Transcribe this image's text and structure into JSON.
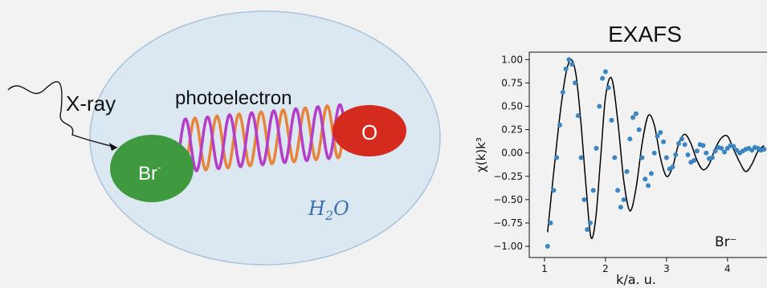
{
  "diagram": {
    "xray_label": "X-ray",
    "photoelectron_label": "photoelectron",
    "bromide_label": "Br",
    "bromide_charge": "-",
    "oxygen_label": "O",
    "water_label_main": "H",
    "water_label_sub": "2",
    "water_label_end": "O",
    "colors": {
      "water_fill": "#dbe7f1",
      "water_stroke": "#a9c4dc",
      "bromide": "#3f9a3f",
      "oxygen": "#d42b1e",
      "wave_orange": "#e8843a",
      "wave_purple": "#b53dc7",
      "water_text": "#3a6fb3"
    }
  },
  "chart_data": {
    "type": "scatter",
    "title": "EXAFS",
    "xlabel": "k/a. u.",
    "ylabel": "χ(k)k³",
    "xlim": [
      0.75,
      4.7
    ],
    "ylim": [
      -1.12,
      1.08
    ],
    "xticks": [
      "1",
      "2",
      "3",
      "4"
    ],
    "yticks": [
      "1.00",
      "0.75",
      "0.50",
      "0.25",
      "0.00",
      "−0.25",
      "−0.50",
      "−0.75",
      "−1.00"
    ],
    "annotation": "Br⁻",
    "grid": false,
    "series": [
      {
        "kind": "line",
        "color": "#000000",
        "x": [
          1.05,
          1.12,
          1.2,
          1.28,
          1.36,
          1.44,
          1.52,
          1.6,
          1.68,
          1.76,
          1.84,
          1.92,
          2.0,
          2.1,
          2.2,
          2.3,
          2.4,
          2.5,
          2.6,
          2.7,
          2.8,
          2.9,
          3.0,
          3.1,
          3.2,
          3.3,
          3.4,
          3.5,
          3.6,
          3.7,
          3.8,
          3.9,
          4.0,
          4.1,
          4.2,
          4.3,
          4.4,
          4.5,
          4.6
        ],
        "y": [
          -0.85,
          -0.4,
          0.1,
          0.55,
          0.88,
          1.0,
          0.82,
          0.3,
          -0.35,
          -0.9,
          -0.7,
          -0.05,
          0.6,
          0.8,
          0.35,
          -0.3,
          -0.62,
          -0.38,
          0.1,
          0.4,
          0.3,
          -0.05,
          -0.25,
          -0.15,
          0.1,
          0.2,
          0.1,
          -0.08,
          -0.18,
          -0.12,
          0.05,
          0.16,
          0.18,
          0.04,
          -0.1,
          -0.2,
          -0.12,
          0.02,
          0.08
        ]
      },
      {
        "kind": "points",
        "color": "#3a85c4",
        "x": [
          1.05,
          1.1,
          1.15,
          1.2,
          1.25,
          1.3,
          1.35,
          1.4,
          1.45,
          1.5,
          1.55,
          1.6,
          1.65,
          1.7,
          1.75,
          1.8,
          1.85,
          1.9,
          1.95,
          2.0,
          2.05,
          2.1,
          2.15,
          2.2,
          2.25,
          2.3,
          2.35,
          2.4,
          2.45,
          2.5,
          2.55,
          2.6,
          2.65,
          2.7,
          2.75,
          2.8,
          2.85,
          2.9,
          2.95,
          3.0,
          3.05,
          3.1,
          3.15,
          3.2,
          3.25,
          3.3,
          3.35,
          3.4,
          3.45,
          3.5,
          3.55,
          3.6,
          3.65,
          3.7,
          3.75,
          3.8,
          3.85,
          3.9,
          3.95,
          4.0,
          4.05,
          4.1,
          4.15,
          4.2,
          4.25,
          4.3,
          4.35,
          4.4,
          4.45,
          4.5,
          4.55,
          4.6
        ],
        "y": [
          -1.0,
          -0.75,
          -0.4,
          -0.05,
          0.3,
          0.65,
          0.9,
          1.0,
          0.95,
          0.75,
          0.4,
          -0.05,
          -0.5,
          -0.82,
          -0.75,
          -0.4,
          0.05,
          0.5,
          0.8,
          0.87,
          0.7,
          0.35,
          -0.05,
          -0.4,
          -0.58,
          -0.5,
          -0.2,
          0.15,
          0.38,
          0.42,
          0.25,
          -0.05,
          -0.28,
          -0.35,
          -0.22,
          0.0,
          0.18,
          0.22,
          0.12,
          -0.05,
          -0.17,
          -0.15,
          -0.02,
          0.1,
          0.15,
          0.09,
          -0.02,
          -0.1,
          -0.08,
          0.02,
          0.09,
          0.08,
          0.0,
          -0.06,
          -0.05,
          0.02,
          0.06,
          0.05,
          0.01,
          0.05,
          0.08,
          0.07,
          0.03,
          0.0,
          0.02,
          0.04,
          0.05,
          0.03,
          0.06,
          0.05,
          0.03,
          0.04
        ]
      }
    ]
  }
}
